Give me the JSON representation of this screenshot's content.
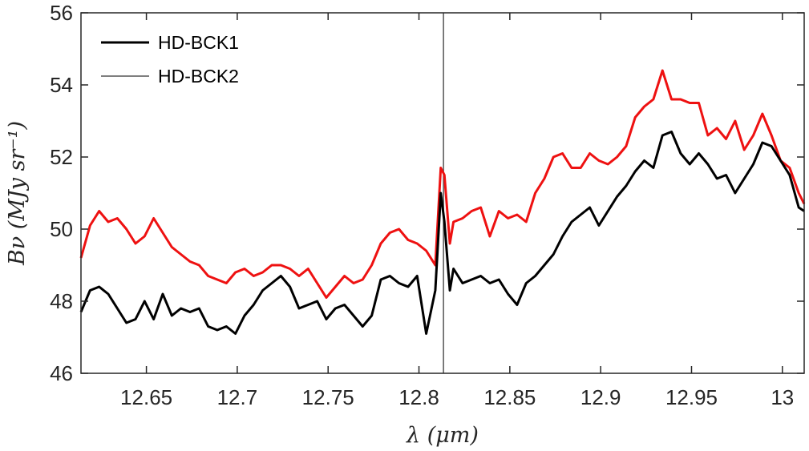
{
  "chart_data": {
    "type": "line",
    "xlabel": "λ (μm)",
    "ylabel": "Bν (MJy sr⁻¹)",
    "xlim": [
      12.614,
      13.012
    ],
    "ylim": [
      46,
      56
    ],
    "xticks": [
      12.65,
      12.7,
      12.75,
      12.8,
      12.85,
      12.9,
      12.95,
      13.0
    ],
    "xtick_labels": [
      "12.65",
      "12.7",
      "12.75",
      "12.8",
      "12.85",
      "12.9",
      "12.95",
      "13"
    ],
    "yticks": [
      46,
      48,
      50,
      52,
      54,
      56
    ],
    "ytick_labels": [
      "46",
      "48",
      "50",
      "52",
      "54",
      "56"
    ],
    "grid": false,
    "legend_position": "top-left",
    "vertical_line_x": 12.8135,
    "series": [
      {
        "name": "HD-BCK1",
        "color": "#000000",
        "x": [
          12.614,
          12.619,
          12.624,
          12.629,
          12.634,
          12.639,
          12.644,
          12.649,
          12.654,
          12.659,
          12.664,
          12.669,
          12.674,
          12.679,
          12.684,
          12.689,
          12.694,
          12.699,
          12.704,
          12.709,
          12.714,
          12.719,
          12.724,
          12.729,
          12.734,
          12.739,
          12.744,
          12.749,
          12.754,
          12.759,
          12.764,
          12.769,
          12.774,
          12.779,
          12.784,
          12.789,
          12.794,
          12.799,
          12.804,
          12.809,
          12.812,
          12.814,
          12.817,
          12.819,
          12.824,
          12.829,
          12.834,
          12.839,
          12.844,
          12.849,
          12.854,
          12.859,
          12.864,
          12.869,
          12.874,
          12.879,
          12.884,
          12.889,
          12.894,
          12.899,
          12.904,
          12.909,
          12.914,
          12.919,
          12.924,
          12.929,
          12.934,
          12.939,
          12.944,
          12.949,
          12.954,
          12.959,
          12.964,
          12.969,
          12.974,
          12.979,
          12.984,
          12.989,
          12.994,
          12.999,
          13.004,
          13.009,
          13.012
        ],
        "y": [
          47.7,
          48.3,
          48.4,
          48.2,
          47.8,
          47.4,
          47.5,
          48.0,
          47.5,
          48.2,
          47.6,
          47.8,
          47.7,
          47.8,
          47.3,
          47.2,
          47.3,
          47.1,
          47.6,
          47.9,
          48.3,
          48.5,
          48.7,
          48.4,
          47.8,
          47.9,
          48.0,
          47.5,
          47.8,
          47.9,
          47.6,
          47.3,
          47.6,
          48.6,
          48.7,
          48.5,
          48.4,
          48.7,
          47.1,
          48.3,
          51.0,
          50.2,
          48.3,
          48.9,
          48.5,
          48.6,
          48.7,
          48.5,
          48.6,
          48.2,
          47.9,
          48.5,
          48.7,
          49.0,
          49.3,
          49.8,
          50.2,
          50.4,
          50.6,
          50.1,
          50.5,
          50.9,
          51.2,
          51.6,
          51.9,
          51.7,
          52.6,
          52.7,
          52.1,
          51.8,
          52.1,
          51.8,
          51.4,
          51.5,
          51.0,
          51.4,
          51.8,
          52.4,
          52.3,
          51.9,
          51.5,
          50.6,
          50.5
        ],
        "values_note": ""
      },
      {
        "name": "",
        "color": "#ee1111",
        "x": [
          12.614,
          12.619,
          12.624,
          12.629,
          12.634,
          12.639,
          12.644,
          12.649,
          12.654,
          12.659,
          12.664,
          12.669,
          12.674,
          12.679,
          12.684,
          12.689,
          12.694,
          12.699,
          12.704,
          12.709,
          12.714,
          12.719,
          12.724,
          12.729,
          12.734,
          12.739,
          12.744,
          12.749,
          12.754,
          12.759,
          12.764,
          12.769,
          12.774,
          12.779,
          12.784,
          12.789,
          12.794,
          12.799,
          12.804,
          12.809,
          12.812,
          12.814,
          12.817,
          12.819,
          12.824,
          12.829,
          12.834,
          12.839,
          12.844,
          12.849,
          12.854,
          12.859,
          12.864,
          12.869,
          12.874,
          12.879,
          12.884,
          12.889,
          12.894,
          12.899,
          12.904,
          12.909,
          12.914,
          12.919,
          12.924,
          12.929,
          12.934,
          12.939,
          12.944,
          12.949,
          12.954,
          12.959,
          12.964,
          12.969,
          12.974,
          12.979,
          12.984,
          12.989,
          12.994,
          12.999,
          13.004,
          13.009,
          13.012
        ],
        "y": [
          49.2,
          50.1,
          50.5,
          50.2,
          50.3,
          50.0,
          49.6,
          49.8,
          50.3,
          49.9,
          49.5,
          49.3,
          49.1,
          49.0,
          48.7,
          48.6,
          48.5,
          48.8,
          48.9,
          48.7,
          48.8,
          49.0,
          49.0,
          48.9,
          48.7,
          48.9,
          48.5,
          48.1,
          48.4,
          48.7,
          48.5,
          48.6,
          49.0,
          49.6,
          49.9,
          50.0,
          49.7,
          49.6,
          49.4,
          49.0,
          51.7,
          51.5,
          49.6,
          50.2,
          50.3,
          50.5,
          50.6,
          49.8,
          50.5,
          50.3,
          50.4,
          50.2,
          51.0,
          51.4,
          52.0,
          52.1,
          51.7,
          51.7,
          52.1,
          51.9,
          51.8,
          52.0,
          52.3,
          53.1,
          53.4,
          53.6,
          54.4,
          53.6,
          53.6,
          53.5,
          53.5,
          52.6,
          52.8,
          52.5,
          53.0,
          52.2,
          52.6,
          53.2,
          52.6,
          51.9,
          51.7,
          51.0,
          50.7
        ]
      },
      {
        "name": "HD-BCK2",
        "color": "#555555",
        "x": [
          12.8135,
          12.8135
        ],
        "y": [
          46,
          56
        ]
      }
    ]
  },
  "legend": {
    "items": [
      {
        "label": "HD-BCK1",
        "color": "#000000"
      },
      {
        "label": "HD-BCK2",
        "color": "#555555"
      }
    ]
  }
}
